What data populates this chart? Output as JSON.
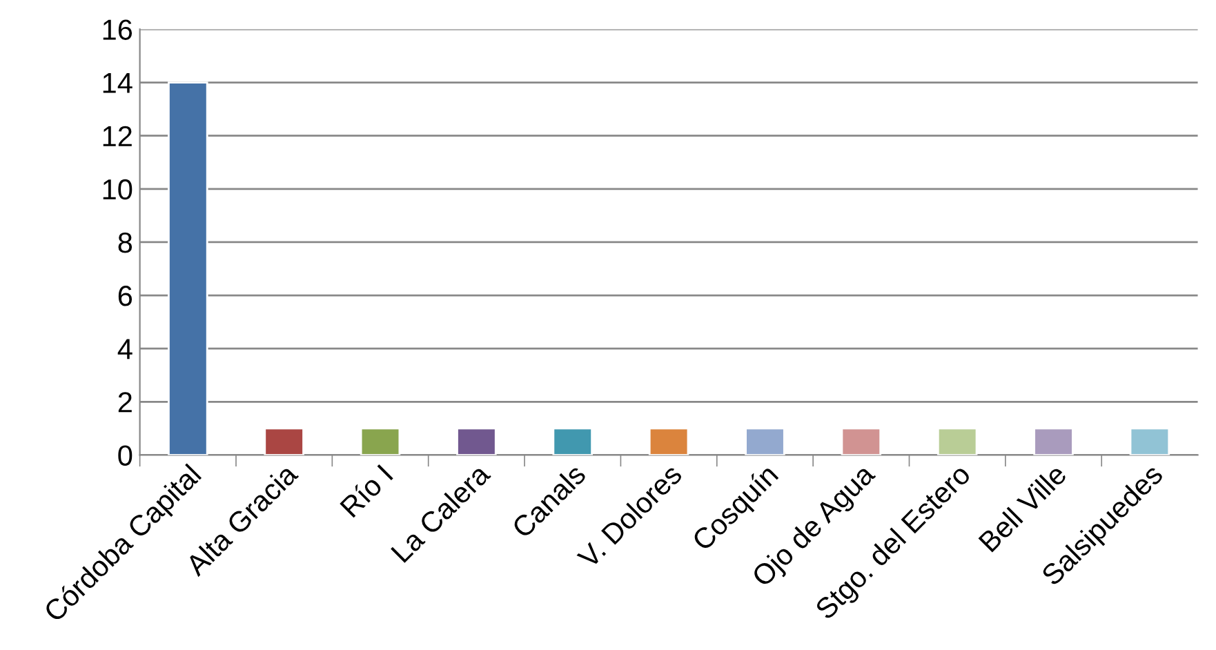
{
  "chart_data": {
    "type": "bar",
    "categories": [
      "Córdoba Capital",
      "Alta Gracia",
      "Río I",
      "La Calera",
      "Canals",
      "V. Dolores",
      "Cosquín",
      "Ojo de Agua",
      "Stgo. del Estero",
      "Bell Ville",
      "Salsipuedes"
    ],
    "values": [
      14,
      1,
      1,
      1,
      1,
      1,
      1,
      1,
      1,
      1,
      1
    ],
    "colors": [
      "#4572a7",
      "#aa4643",
      "#89a54e",
      "#71588f",
      "#4198af",
      "#db843d",
      "#93a9cf",
      "#d19392",
      "#b9cd96",
      "#a99bbd",
      "#91c3d5"
    ],
    "ylim": [
      0,
      16
    ],
    "yticks": [
      0,
      2,
      4,
      6,
      8,
      10,
      12,
      14,
      16
    ],
    "grid": "y"
  }
}
